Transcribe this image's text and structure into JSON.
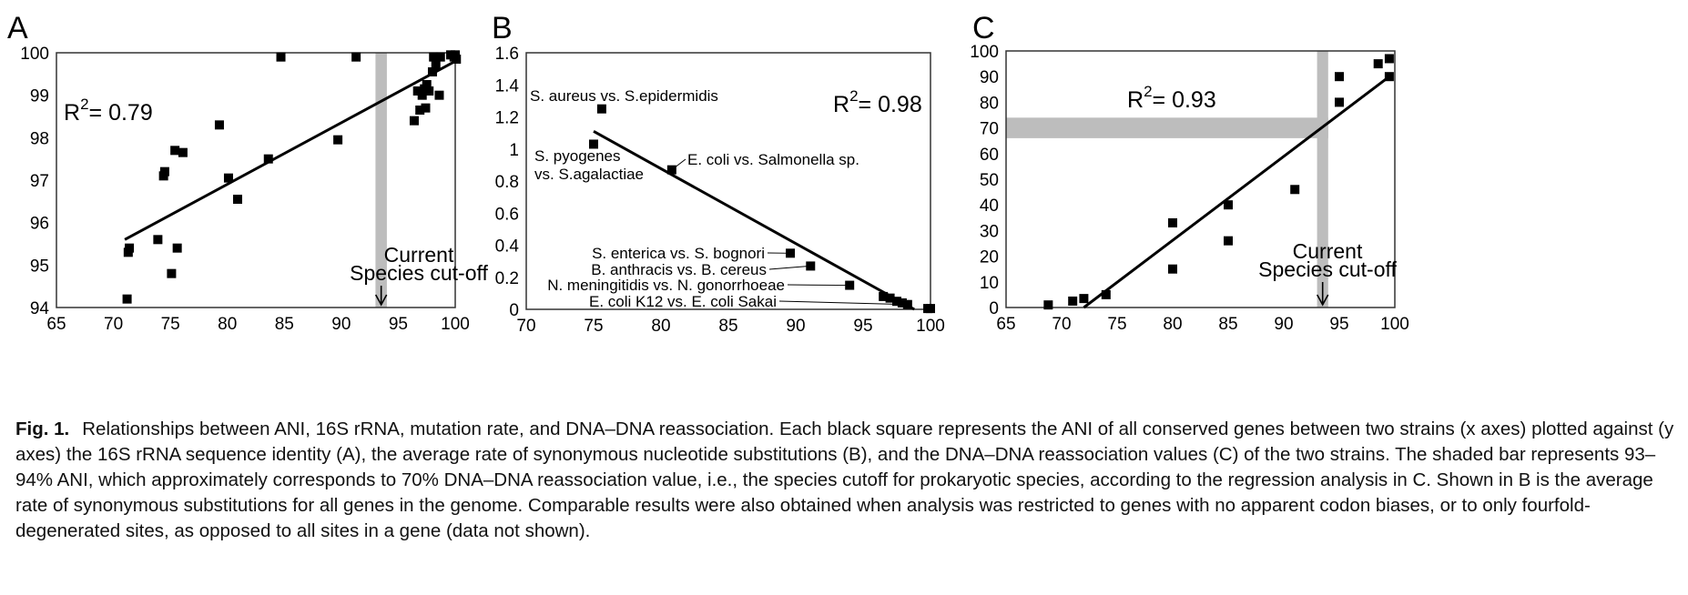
{
  "figure": {
    "caption_label": "Fig. 1.",
    "caption_text": "Relationships between ANI, 16S rRNA, mutation rate, and DNA–DNA reassociation. Each black square represents the ANI of all conserved genes between two strains (x axes) plotted against (y axes) the 16S rRNA sequence identity (A), the average rate of synonymous nucleotide substitutions (B), and the DNA–DNA reassociation values (C) of the two strains. The shaded bar represents 93–94% ANI, which approximately corresponds to 70% DNA–DNA reassociation value, i.e., the species cutoff for prokaryotic species, according to the regression analysis in C. Shown in B is the average rate of synonymous substitutions for all genes in the genome. Comparable results were also obtained when analysis was restricted to genes with no apparent codon biases, or to only fourfold-degenerated sites, as opposed to all sites in a gene (data not shown)."
  },
  "colors": {
    "points": "#000000",
    "line": "#000000",
    "shade": "#bdbdbd",
    "frame": "#333333"
  },
  "chart_data": [
    {
      "panel": "A",
      "type": "scatter",
      "xlim": [
        65,
        100
      ],
      "ylim": [
        94,
        100
      ],
      "xticks": [
        "65",
        "70",
        "75",
        "80",
        "85",
        "90",
        "95",
        "100"
      ],
      "yticks": [
        "94",
        "95",
        "96",
        "97",
        "98",
        "99",
        "100"
      ],
      "r2_label": "R",
      "r2_sup": "2",
      "r2_value": "= 0.79",
      "regression": [
        [
          71,
          95.6
        ],
        [
          100,
          99.8
        ]
      ],
      "shaded_x": [
        93,
        94
      ],
      "cutoff_line1": "Current",
      "cutoff_line2": "Species cut-off",
      "points": [
        [
          71.2,
          94.2
        ],
        [
          71.3,
          95.3
        ],
        [
          71.4,
          95.4
        ],
        [
          73.9,
          95.6
        ],
        [
          74.4,
          97.1
        ],
        [
          74.5,
          97.2
        ],
        [
          75.1,
          94.8
        ],
        [
          75.4,
          97.7
        ],
        [
          75.6,
          95.4
        ],
        [
          76.1,
          97.65
        ],
        [
          79.3,
          98.3
        ],
        [
          80.1,
          97.05
        ],
        [
          80.9,
          96.55
        ],
        [
          83.6,
          97.5
        ],
        [
          84.7,
          99.9
        ],
        [
          89.7,
          97.95
        ],
        [
          91.3,
          99.9
        ],
        [
          96.4,
          98.4
        ],
        [
          96.7,
          99.1
        ],
        [
          96.9,
          98.65
        ],
        [
          97.1,
          99.0
        ],
        [
          97.3,
          99.15
        ],
        [
          97.4,
          98.7
        ],
        [
          97.5,
          99.25
        ],
        [
          97.7,
          99.1
        ],
        [
          98.0,
          99.55
        ],
        [
          98.1,
          99.9
        ],
        [
          98.3,
          99.7
        ],
        [
          98.6,
          99.0
        ],
        [
          98.7,
          99.9
        ],
        [
          99.6,
          99.95
        ],
        [
          99.9,
          99.9
        ],
        [
          100.0,
          99.95
        ],
        [
          100.1,
          99.85
        ]
      ]
    },
    {
      "panel": "B",
      "type": "scatter",
      "xlim": [
        70,
        100
      ],
      "ylim": [
        0,
        1.6
      ],
      "xticks": [
        "70",
        "75",
        "80",
        "85",
        "90",
        "95",
        "100"
      ],
      "yticks": [
        "0",
        "0.2",
        "0.4",
        "0.6",
        "0.8",
        "1",
        "1.2",
        "1.4",
        "1.6"
      ],
      "r2_label": "R",
      "r2_sup": "2",
      "r2_value": "= 0.98",
      "regression": [
        [
          75,
          1.11
        ],
        [
          98.8,
          0.0
        ]
      ],
      "points": [
        [
          75.0,
          1.03
        ],
        [
          75.6,
          1.25
        ],
        [
          80.8,
          0.87
        ],
        [
          89.6,
          0.35
        ],
        [
          91.1,
          0.27
        ],
        [
          94.0,
          0.15
        ],
        [
          96.5,
          0.08
        ],
        [
          97.0,
          0.07
        ],
        [
          97.5,
          0.05
        ],
        [
          97.9,
          0.04
        ],
        [
          98.3,
          0.03
        ],
        [
          99.8,
          0.005
        ],
        [
          100.0,
          0.005
        ]
      ],
      "annotations": [
        {
          "lines": [
            "S. aureus vs. S.epidermidis"
          ],
          "x": 75.6,
          "y": 1.25,
          "leader": false
        },
        {
          "lines": [
            "S. pyogenes",
            "vs. S.agalactiae"
          ],
          "x": 75.0,
          "y": 1.03,
          "leader": false
        },
        {
          "lines": [
            "E. coli vs. Salmonella sp."
          ],
          "x": 80.8,
          "y": 0.87,
          "leader": true
        },
        {
          "lines": [
            "S. enterica vs. S. bognori"
          ],
          "x": 89.6,
          "y": 0.35,
          "leader": true
        },
        {
          "lines": [
            "B. anthracis vs. B. cereus"
          ],
          "x": 91.1,
          "y": 0.27,
          "leader": true
        },
        {
          "lines": [
            "N. meningitidis vs. N. gonorrhoeae"
          ],
          "x": 94.0,
          "y": 0.15,
          "leader": true
        },
        {
          "lines": [
            "E. coli K12 vs. E. coli Sakai"
          ],
          "x": 98.3,
          "y": 0.03,
          "leader": true
        }
      ]
    },
    {
      "panel": "C",
      "type": "scatter",
      "xlim": [
        65,
        100
      ],
      "ylim": [
        0,
        100
      ],
      "xticks": [
        "65",
        "70",
        "75",
        "80",
        "85",
        "90",
        "95",
        "100"
      ],
      "yticks": [
        "0",
        "10",
        "20",
        "30",
        "40",
        "50",
        "60",
        "70",
        "80",
        "90",
        "100"
      ],
      "r2_label": "R",
      "r2_sup": "2",
      "r2_value": "= 0.93",
      "regression": [
        [
          72,
          0
        ],
        [
          99.5,
          90
        ]
      ],
      "shaded_x": [
        93,
        94
      ],
      "shaded_y": [
        66,
        74
      ],
      "cutoff_line1": "Current",
      "cutoff_line2": "Species cut-off",
      "points": [
        [
          68.8,
          1
        ],
        [
          71.0,
          2.5
        ],
        [
          72.0,
          3.5
        ],
        [
          74.0,
          5
        ],
        [
          80.0,
          15
        ],
        [
          80.0,
          33
        ],
        [
          85.0,
          26
        ],
        [
          85.0,
          40
        ],
        [
          91.0,
          46
        ],
        [
          95.0,
          80
        ],
        [
          95.0,
          90
        ],
        [
          98.5,
          95
        ],
        [
          99.5,
          90
        ],
        [
          99.5,
          97
        ]
      ]
    }
  ]
}
